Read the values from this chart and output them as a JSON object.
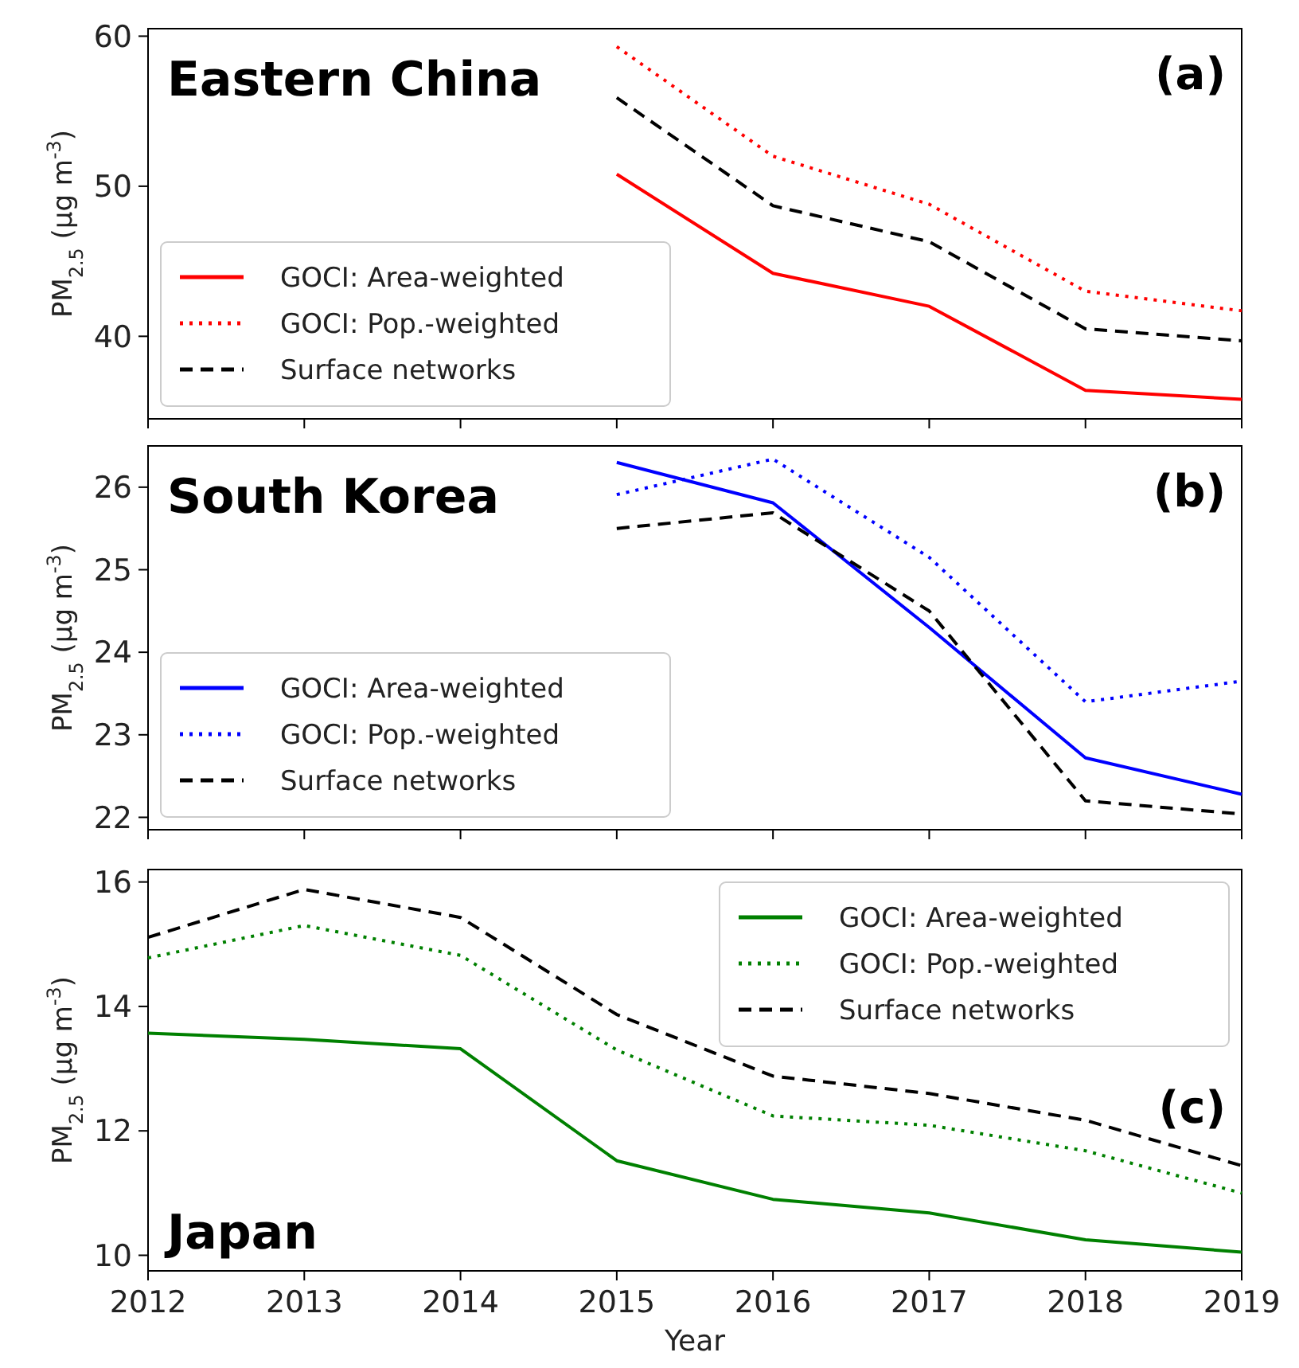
{
  "chart_data": [
    {
      "type": "line",
      "title": "Eastern China",
      "ylabel": "PM$_{2.5}$ (μg m$^{-3}$)",
      "annotations": [
        "(a)"
      ],
      "x": [
        2015,
        2016,
        2017,
        2018,
        2019
      ],
      "xlim": [
        2012,
        2019
      ],
      "xticks": [
        2012,
        2013,
        2014,
        2015,
        2016,
        2017,
        2018,
        2019
      ],
      "ylim": [
        34.5,
        60.5
      ],
      "yticks": [
        40,
        50,
        60
      ],
      "tick_labels": "y",
      "legend": "bottom left",
      "series": [
        {
          "name": "GOCI: Area-weighted",
          "color": "#ff0000",
          "line_style": "solid",
          "values": [
            50.8,
            44.2,
            42.0,
            36.4,
            35.8
          ]
        },
        {
          "name": "GOCI: Pop.-weighted",
          "color": "#ff0000",
          "line_style": "dotted",
          "values": [
            59.3,
            52.0,
            48.8,
            43.0,
            41.7
          ]
        },
        {
          "name": "Surface networks",
          "color": "#000000",
          "line_style": "dashed",
          "values": [
            55.9,
            48.7,
            46.3,
            40.5,
            39.7
          ]
        }
      ]
    },
    {
      "type": "line",
      "title": "South Korea",
      "ylabel": "PM$_{2.5}$ (μg m$^{-3}$)",
      "annotations": [
        "(b)"
      ],
      "x": [
        2015,
        2016,
        2017,
        2018,
        2019
      ],
      "xlim": [
        2012,
        2019
      ],
      "xticks": [
        2012,
        2013,
        2014,
        2015,
        2016,
        2017,
        2018,
        2019
      ],
      "ylim": [
        21.85,
        26.5
      ],
      "yticks": [
        22,
        23,
        24,
        25,
        26
      ],
      "tick_labels": "y",
      "legend": "bottom left",
      "series": [
        {
          "name": "GOCI: Area-weighted",
          "color": "#0000ff",
          "line_style": "solid",
          "values": [
            26.3,
            25.81,
            24.3,
            22.72,
            22.28
          ]
        },
        {
          "name": "GOCI: Pop.-weighted",
          "color": "#0000ff",
          "line_style": "dotted",
          "values": [
            25.91,
            26.34,
            25.15,
            23.4,
            23.65
          ]
        },
        {
          "name": "Surface networks",
          "color": "#000000",
          "line_style": "dashed",
          "values": [
            25.5,
            25.69,
            24.5,
            22.2,
            22.04
          ]
        }
      ]
    },
    {
      "type": "line",
      "title": "Japan",
      "xlabel": "Year",
      "ylabel": "PM$_{2.5}$ (μg m$^{-3}$)",
      "annotations": [
        "(c)"
      ],
      "x": [
        2012,
        2013,
        2014,
        2015,
        2016,
        2017,
        2018,
        2019
      ],
      "xlim": [
        2012,
        2019
      ],
      "xticks": [
        2012,
        2013,
        2014,
        2015,
        2016,
        2017,
        2018,
        2019
      ],
      "ylim": [
        9.75,
        16.2
      ],
      "yticks": [
        10,
        12,
        14,
        16
      ],
      "legend": "top right",
      "series": [
        {
          "name": "GOCI: Area-weighted",
          "color": "#008000",
          "line_style": "solid",
          "values": [
            13.57,
            13.47,
            13.32,
            11.52,
            10.9,
            10.68,
            10.25,
            10.05
          ]
        },
        {
          "name": "GOCI: Pop.-weighted",
          "color": "#008000",
          "line_style": "dotted",
          "values": [
            14.78,
            15.3,
            14.82,
            13.3,
            12.24,
            12.09,
            11.68,
            11.0
          ]
        },
        {
          "name": "Surface networks",
          "color": "#000000",
          "line_style": "dashed",
          "values": [
            15.11,
            15.88,
            15.43,
            13.87,
            12.88,
            12.6,
            12.17,
            11.44
          ]
        }
      ]
    }
  ]
}
